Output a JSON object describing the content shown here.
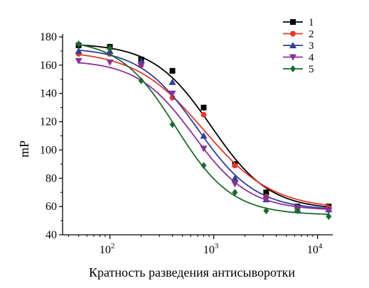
{
  "chart_data": {
    "type": "line",
    "title": "",
    "xlabel": "Кратность разведения антисыворотки",
    "ylabel": "mP",
    "x_scale": "log",
    "xlim": [
      35,
      14000
    ],
    "ylim": [
      40,
      180
    ],
    "yticks": [
      40,
      60,
      80,
      100,
      120,
      140,
      160,
      180
    ],
    "xticks": [
      {
        "value": 100,
        "base": "10",
        "exp": "2"
      },
      {
        "value": 1000,
        "base": "10",
        "exp": "3"
      },
      {
        "value": 10000,
        "base": "10",
        "exp": "4"
      }
    ],
    "grid": false,
    "legend_position": "top-right",
    "series": [
      {
        "name": "1",
        "color": "#000000",
        "marker": "square",
        "x": [
          50,
          100,
          200,
          400,
          800,
          1600,
          3200,
          6400,
          12800
        ],
        "y": [
          174,
          173,
          164,
          156,
          130,
          90,
          70,
          60,
          60
        ],
        "curve": [
          175.5,
          57.6,
          1.55,
          950
        ]
      },
      {
        "name": "2",
        "color": "#e8382a",
        "marker": "circle",
        "x": [
          50,
          100,
          200,
          400,
          800,
          1600,
          3200,
          6400,
          12800
        ],
        "y": [
          168,
          168,
          160,
          137,
          125,
          89,
          67,
          59,
          59
        ],
        "curve": [
          170.5,
          57.9,
          1.3,
          800
        ]
      },
      {
        "name": "3",
        "color": "#2e3f9c",
        "marker": "triangle-up",
        "x": [
          50,
          100,
          200,
          400,
          800,
          1600,
          3200,
          6400,
          12800
        ],
        "y": [
          170,
          170,
          163,
          148,
          110,
          80,
          65,
          58,
          58
        ],
        "curve": [
          172.5,
          57.4,
          1.55,
          700
        ]
      },
      {
        "name": "4",
        "color": "#8b2f9a",
        "marker": "triangle-down",
        "x": [
          50,
          100,
          200,
          400,
          800,
          1600,
          3200,
          6400,
          12800
        ],
        "y": [
          163,
          162,
          160,
          140,
          101,
          76,
          65,
          58,
          57
        ],
        "curve": [
          163.5,
          57.2,
          1.6,
          640
        ]
      },
      {
        "name": "5",
        "color": "#1a6b2e",
        "marker": "diamond",
        "x": [
          50,
          100,
          200,
          400,
          800,
          1600,
          3200,
          6400,
          12800
        ],
        "y": [
          175,
          172,
          149,
          118,
          89,
          70,
          57,
          57,
          53
        ],
        "curve": [
          178.5,
          54.0,
          1.6,
          430
        ]
      }
    ]
  }
}
